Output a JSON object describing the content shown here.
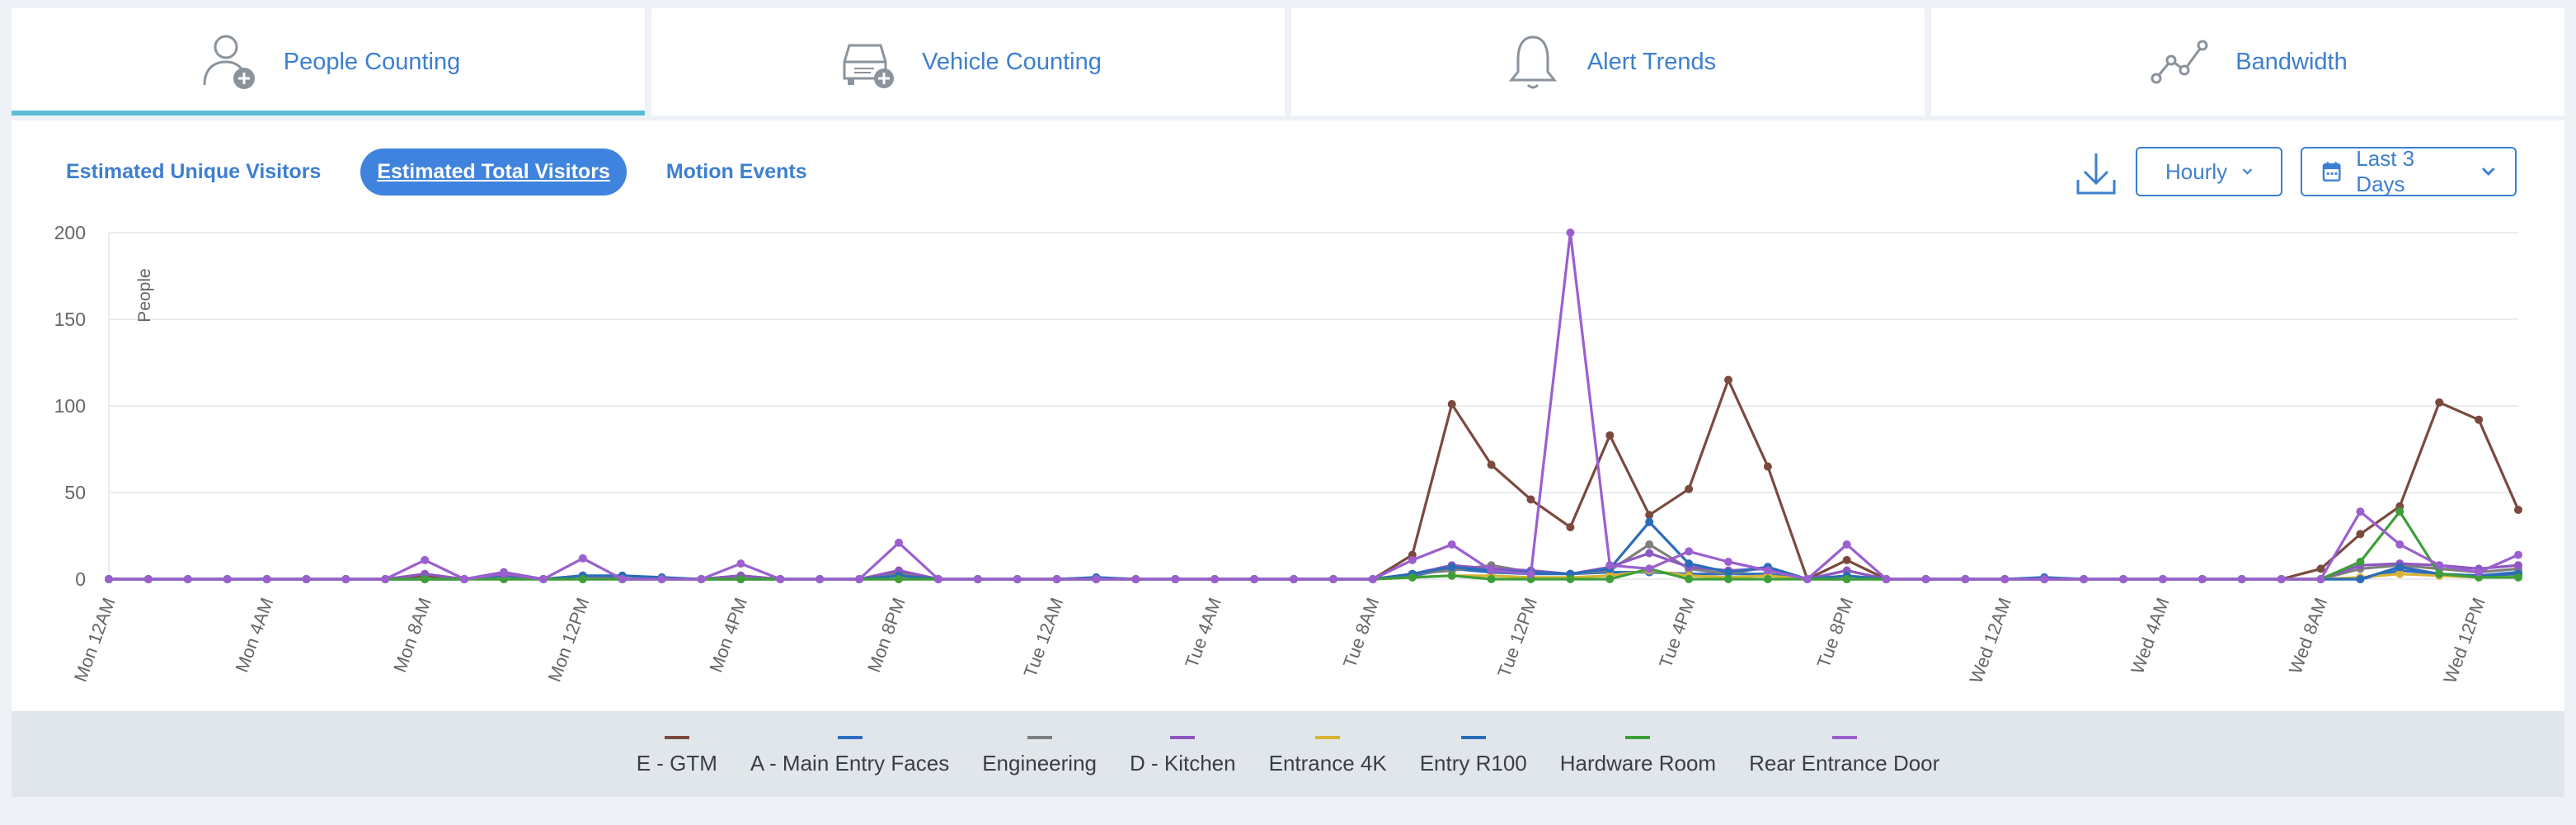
{
  "tabs": [
    {
      "label": "People Counting",
      "icon": "person-add-icon",
      "active": true
    },
    {
      "label": "Vehicle Counting",
      "icon": "vehicle-add-icon",
      "active": false
    },
    {
      "label": "Alert Trends",
      "icon": "bell-icon",
      "active": false
    },
    {
      "label": "Bandwidth",
      "icon": "trend-line-icon",
      "active": false
    }
  ],
  "subtabs": [
    {
      "label": "Estimated Unique Visitors",
      "active": false
    },
    {
      "label": "Estimated Total Visitors",
      "active": true
    },
    {
      "label": "Motion Events",
      "active": false
    }
  ],
  "controls": {
    "download_icon": "download-icon",
    "interval": "Hourly",
    "range": "Last 3 Days",
    "range_icon": "calendar-icon",
    "chevron_icon": "chevron-down-icon"
  },
  "colors": {
    "accent": "#3d7fd0",
    "active_tab_underline": "#5bbcd6",
    "active_pill": "#3f83de"
  },
  "chart_data": {
    "type": "line",
    "ylabel": "People",
    "ylim": [
      0,
      200
    ],
    "yticks": [
      0,
      50,
      100,
      150,
      200
    ],
    "grid": true,
    "legend_position": "bottom",
    "xticks": [
      {
        "label": "Mon 12AM",
        "index": 0
      },
      {
        "label": "Mon 4AM",
        "index": 4
      },
      {
        "label": "Mon 8AM",
        "index": 8
      },
      {
        "label": "Mon 12PM",
        "index": 12
      },
      {
        "label": "Mon 4PM",
        "index": 16
      },
      {
        "label": "Mon 8PM",
        "index": 20
      },
      {
        "label": "Tue 12AM",
        "index": 24
      },
      {
        "label": "Tue 4AM",
        "index": 28
      },
      {
        "label": "Tue 8AM",
        "index": 32
      },
      {
        "label": "Tue 12PM",
        "index": 36
      },
      {
        "label": "Tue 4PM",
        "index": 40
      },
      {
        "label": "Tue 8PM",
        "index": 44
      },
      {
        "label": "Wed 12AM",
        "index": 48
      },
      {
        "label": "Wed 4AM",
        "index": 52
      },
      {
        "label": "Wed 8AM",
        "index": 56
      },
      {
        "label": "Wed 12PM",
        "index": 60
      }
    ],
    "series": [
      {
        "name": "E - GTM",
        "color": "#7b4a3e",
        "values": [
          0,
          0,
          0,
          0,
          0,
          0,
          0,
          0,
          2,
          0,
          3,
          0,
          2,
          0,
          0,
          0,
          2,
          0,
          0,
          0,
          4,
          0,
          0,
          0,
          0,
          0,
          0,
          0,
          0,
          0,
          0,
          0,
          0,
          14,
          101,
          66,
          46,
          30,
          83,
          37,
          52,
          115,
          65,
          0,
          11,
          0,
          0,
          0,
          0,
          0,
          0,
          0,
          0,
          0,
          0,
          0,
          6,
          26,
          42,
          102,
          92,
          40
        ]
      },
      {
        "name": "A - Main Entry Faces",
        "color": "#2f6fc2",
        "values": [
          0,
          0,
          0,
          0,
          0,
          0,
          0,
          0,
          0,
          0,
          0,
          0,
          0,
          0,
          0,
          0,
          0,
          0,
          0,
          0,
          0,
          0,
          0,
          0,
          0,
          0,
          0,
          0,
          0,
          0,
          0,
          0,
          0,
          2,
          6,
          4,
          3,
          3,
          4,
          4,
          3,
          3,
          3,
          0,
          0,
          0,
          0,
          0,
          0,
          0,
          0,
          0,
          0,
          0,
          0,
          0,
          0,
          0,
          5,
          3,
          2,
          4
        ]
      },
      {
        "name": "Engineering",
        "color": "#7f7f7f",
        "values": [
          0,
          0,
          0,
          0,
          0,
          0,
          0,
          0,
          0,
          0,
          3,
          0,
          2,
          0,
          0,
          0,
          0,
          0,
          0,
          0,
          3,
          0,
          0,
          0,
          0,
          0,
          0,
          0,
          0,
          0,
          0,
          0,
          0,
          3,
          5,
          8,
          4,
          3,
          5,
          20,
          6,
          3,
          7,
          0,
          0,
          0,
          0,
          0,
          0,
          0,
          0,
          0,
          0,
          0,
          0,
          0,
          0,
          6,
          8,
          6,
          4,
          6
        ]
      },
      {
        "name": "D - Kitchen",
        "color": "#8e57c2",
        "values": [
          0,
          0,
          0,
          0,
          0,
          0,
          0,
          0,
          3,
          0,
          4,
          0,
          2,
          0,
          0,
          0,
          2,
          0,
          0,
          0,
          5,
          0,
          0,
          0,
          0,
          0,
          0,
          0,
          0,
          0,
          0,
          0,
          0,
          3,
          8,
          6,
          5,
          3,
          7,
          15,
          7,
          5,
          6,
          0,
          5,
          0,
          0,
          0,
          0,
          0,
          0,
          0,
          0,
          0,
          0,
          0,
          0,
          8,
          9,
          8,
          6,
          8
        ]
      },
      {
        "name": "Entrance 4K",
        "color": "#d6b432",
        "values": [
          0,
          0,
          0,
          0,
          0,
          0,
          0,
          0,
          0,
          0,
          0,
          0,
          0,
          0,
          0,
          0,
          0,
          0,
          0,
          0,
          0,
          0,
          0,
          0,
          0,
          0,
          0,
          0,
          0,
          0,
          0,
          0,
          0,
          1,
          2,
          2,
          1,
          1,
          2,
          5,
          2,
          1,
          2,
          0,
          0,
          0,
          0,
          0,
          0,
          0,
          0,
          0,
          0,
          0,
          0,
          0,
          0,
          1,
          3,
          2,
          1,
          2
        ]
      },
      {
        "name": "Entry R100",
        "color": "#2a6cb8",
        "values": [
          0,
          0,
          0,
          0,
          0,
          0,
          0,
          0,
          0,
          0,
          2,
          0,
          2,
          2,
          1,
          0,
          0,
          0,
          0,
          0,
          2,
          0,
          0,
          0,
          0,
          1,
          0,
          0,
          0,
          0,
          0,
          0,
          0,
          3,
          7,
          5,
          4,
          3,
          6,
          33,
          9,
          4,
          7,
          0,
          2,
          0,
          0,
          0,
          0,
          1,
          0,
          0,
          0,
          0,
          0,
          0,
          0,
          0,
          7,
          3,
          2,
          3
        ]
      },
      {
        "name": "Hardware Room",
        "color": "#3e9e39",
        "values": [
          0,
          0,
          0,
          0,
          0,
          0,
          0,
          0,
          0,
          0,
          0,
          0,
          0,
          0,
          0,
          0,
          0,
          0,
          0,
          0,
          0,
          0,
          0,
          0,
          0,
          0,
          0,
          0,
          0,
          0,
          0,
          0,
          0,
          1,
          2,
          0,
          0,
          0,
          0,
          6,
          0,
          0,
          0,
          0,
          0,
          0,
          0,
          0,
          0,
          0,
          0,
          0,
          0,
          0,
          0,
          0,
          0,
          10,
          39,
          3,
          1,
          1
        ]
      },
      {
        "name": "Rear Entrance Door",
        "color": "#9b5fcf",
        "values": [
          0,
          0,
          0,
          0,
          0,
          0,
          0,
          0,
          11,
          0,
          3,
          0,
          12,
          0,
          0,
          0,
          9,
          0,
          0,
          0,
          21,
          0,
          0,
          0,
          0,
          0,
          0,
          0,
          0,
          0,
          0,
          0,
          0,
          11,
          20,
          5,
          3,
          200,
          8,
          6,
          16,
          10,
          5,
          0,
          20,
          0,
          0,
          0,
          0,
          0,
          0,
          0,
          0,
          0,
          0,
          0,
          0,
          39,
          20,
          8,
          4,
          14
        ]
      }
    ]
  }
}
